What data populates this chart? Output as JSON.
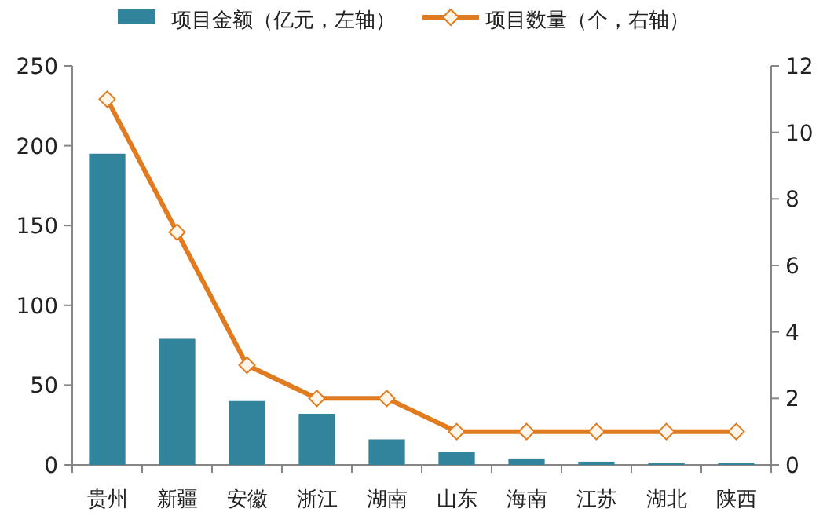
{
  "chart_data": {
    "type": "bar",
    "categories": [
      "贵州",
      "新疆",
      "安徽",
      "浙江",
      "湖南",
      "山东",
      "海南",
      "江苏",
      "湖北",
      "陕西"
    ],
    "series": [
      {
        "name": "项目金额（亿元，左轴）",
        "color": "#31849b",
        "values": [
          195,
          79,
          40,
          32,
          16,
          8,
          4,
          2,
          1,
          1
        ]
      },
      {
        "name": "项目数量（个，右轴）",
        "type": "line",
        "axis": "y2",
        "color": "#e07b1f",
        "marker": "diamond",
        "values": [
          11,
          7,
          3,
          2,
          2,
          1,
          1,
          1,
          1,
          1
        ]
      }
    ],
    "ylim": [
      0,
      250
    ],
    "yticks": [
      0,
      50,
      100,
      150,
      200,
      250
    ],
    "y2lim": [
      0,
      12
    ],
    "y2ticks": [
      0,
      2,
      4,
      6,
      8,
      10,
      12
    ],
    "legend": "top",
    "grid": false
  }
}
